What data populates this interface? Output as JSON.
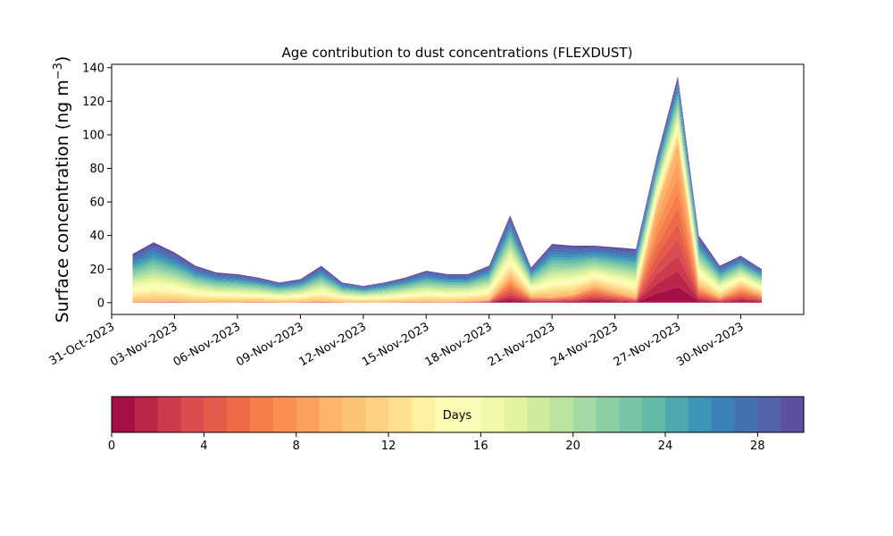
{
  "chart_data": [
    {
      "type": "area",
      "stacked": true,
      "title": "Age contribution to dust concentrations (FLEXDUST)",
      "ylabel_main": "Surface concentration (ng m",
      "ylabel_sup": "−3",
      "ylabel_tail": ")",
      "xlabel": "",
      "ylim": [
        -7,
        142
      ],
      "yticks": [
        0,
        20,
        40,
        60,
        80,
        100,
        120,
        140
      ],
      "xlim": [
        "2023-10-31",
        "2023-12-03"
      ],
      "xticks": [
        "31-Oct-2023",
        "03-Nov-2023",
        "06-Nov-2023",
        "09-Nov-2023",
        "12-Nov-2023",
        "15-Nov-2023",
        "18-Nov-2023",
        "21-Nov-2023",
        "24-Nov-2023",
        "27-Nov-2023",
        "30-Nov-2023"
      ],
      "grid": false,
      "x": [
        "2023-11-01",
        "2023-11-02",
        "2023-11-03",
        "2023-11-04",
        "2023-11-05",
        "2023-11-06",
        "2023-11-07",
        "2023-11-08",
        "2023-11-09",
        "2023-11-10",
        "2023-11-11",
        "2023-11-12",
        "2023-11-13",
        "2023-11-14",
        "2023-11-15",
        "2023-11-16",
        "2023-11-17",
        "2023-11-18",
        "2023-11-19",
        "2023-11-20",
        "2023-11-21",
        "2023-11-22",
        "2023-11-23",
        "2023-11-24",
        "2023-11-25",
        "2023-11-26",
        "2023-11-27",
        "2023-11-28",
        "2023-11-29",
        "2023-11-30",
        "2023-12-01"
      ],
      "total": [
        29,
        36,
        30,
        22,
        18,
        17,
        15,
        12,
        14,
        22,
        12,
        10,
        12,
        15,
        19,
        17,
        17,
        22,
        52,
        21,
        35,
        34,
        34,
        33,
        32,
        87,
        135,
        40,
        22,
        28,
        20
      ],
      "young_fraction": [
        0.02,
        0.02,
        0.03,
        0.02,
        0.02,
        0.02,
        0.04,
        0.03,
        0.03,
        0.04,
        0.03,
        0.02,
        0.02,
        0.03,
        0.03,
        0.03,
        0.05,
        0.08,
        0.3,
        0.18,
        0.1,
        0.15,
        0.3,
        0.2,
        0.1,
        0.65,
        0.7,
        0.25,
        0.15,
        0.35,
        0.25
      ]
    },
    {
      "type": "colorbar",
      "label": "Days",
      "range": [
        0,
        30
      ],
      "ticks": [
        0,
        4,
        8,
        12,
        16,
        20,
        24,
        28
      ],
      "colors": [
        "#a50f45",
        "#bb2548",
        "#cd3a4c",
        "#dc4b4d",
        "#e55b4a",
        "#ef6b46",
        "#f57d49",
        "#f98f52",
        "#fca05e",
        "#fdb36b",
        "#fdc375",
        "#fed282",
        "#fee190",
        "#fff09f",
        "#fefbb4",
        "#f8fcb4",
        "#eff9a7",
        "#e1f39d",
        "#cfec9c",
        "#baE3a0",
        "#a3d9a3",
        "#8ccfa4",
        "#77c5a5",
        "#62b9a8",
        "#4ea7ae",
        "#3c94b6",
        "#3a82b9",
        "#4570b2",
        "#5462a9",
        "#5e4fa2"
      ]
    }
  ]
}
